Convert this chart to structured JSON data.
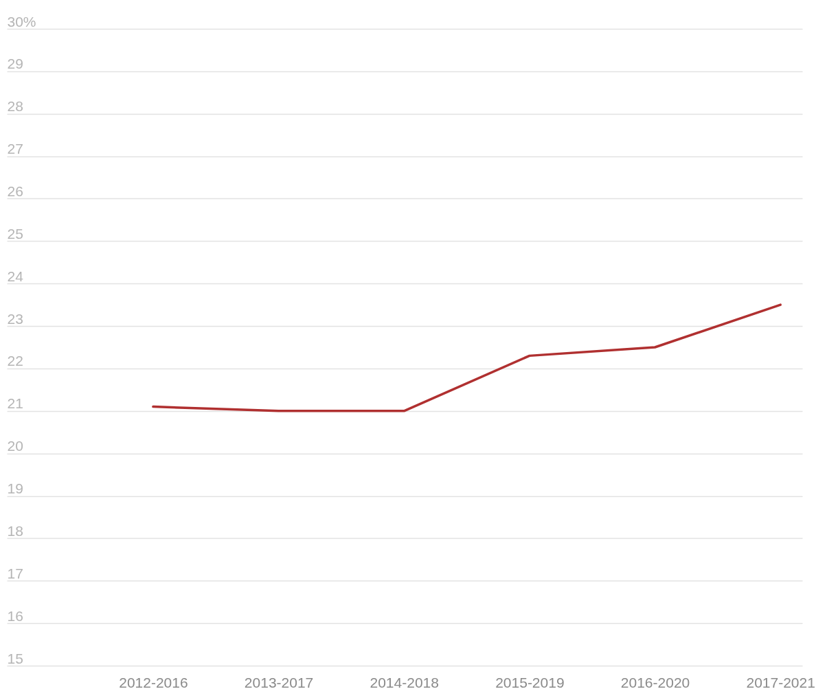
{
  "chart_data": {
    "type": "line",
    "categories": [
      "2012-2016",
      "2013-2017",
      "2014-2018",
      "2015-2019",
      "2016-2020",
      "2017-2021"
    ],
    "series": [
      {
        "color": "#b03030",
        "values": [
          21.1,
          21.0,
          21.0,
          22.3,
          22.5,
          23.5
        ]
      }
    ],
    "ylim": [
      15,
      30
    ],
    "yticks": [
      15,
      16,
      17,
      18,
      19,
      20,
      21,
      22,
      23,
      24,
      25,
      26,
      27,
      28,
      29,
      {
        "value": 30,
        "label": "30%"
      }
    ],
    "grid": "y",
    "legend": false,
    "marker": "none",
    "line_style": "solid"
  }
}
